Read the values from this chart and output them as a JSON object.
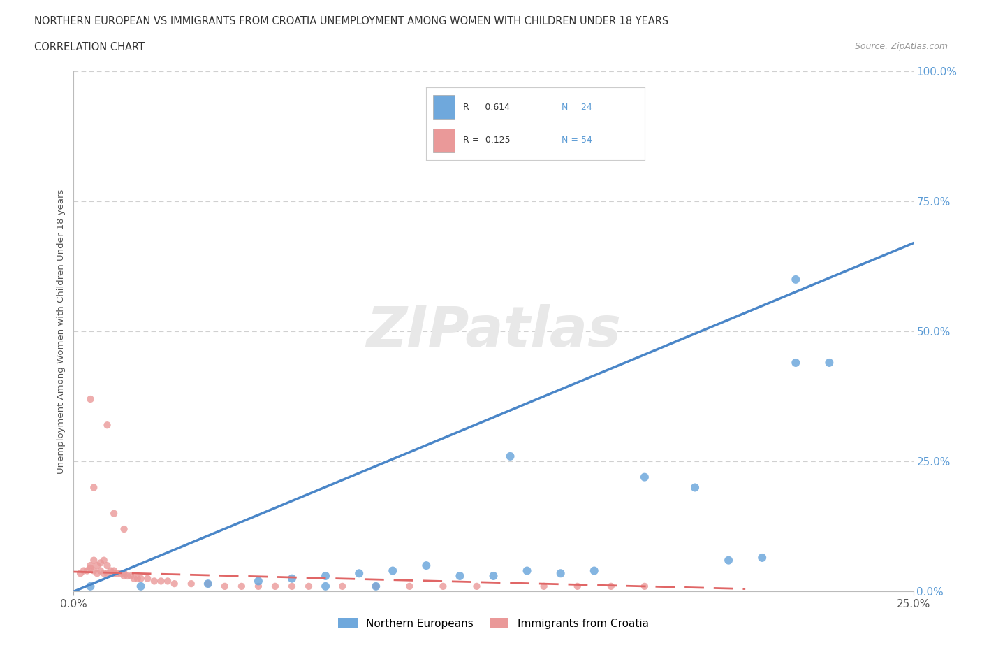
{
  "title_line1": "NORTHERN EUROPEAN VS IMMIGRANTS FROM CROATIA UNEMPLOYMENT AMONG WOMEN WITH CHILDREN UNDER 18 YEARS",
  "title_line2": "CORRELATION CHART",
  "source": "Source: ZipAtlas.com",
  "ylabel": "Unemployment Among Women with Children Under 18 years",
  "xlim": [
    0.0,
    0.25
  ],
  "ylim": [
    0.0,
    1.0
  ],
  "yticks": [
    0.0,
    0.25,
    0.5,
    0.75,
    1.0
  ],
  "ytick_labels": [
    "0.0%",
    "25.0%",
    "50.0%",
    "75.0%",
    "100.0%"
  ],
  "blue_color": "#6fa8dc",
  "pink_color": "#ea9999",
  "blue_line_color": "#4a86c8",
  "pink_line_color": "#e06666",
  "watermark": "ZIPatlas",
  "blue_scatter_x": [
    0.005,
    0.02,
    0.04,
    0.055,
    0.065,
    0.075,
    0.085,
    0.095,
    0.105,
    0.115,
    0.125,
    0.135,
    0.145,
    0.155,
    0.17,
    0.185,
    0.195,
    0.205,
    0.215,
    0.225,
    0.13,
    0.215,
    0.09,
    0.075
  ],
  "blue_scatter_y": [
    0.01,
    0.01,
    0.015,
    0.02,
    0.025,
    0.03,
    0.035,
    0.04,
    0.05,
    0.03,
    0.03,
    0.04,
    0.035,
    0.04,
    0.22,
    0.2,
    0.06,
    0.065,
    0.6,
    0.44,
    0.26,
    0.44,
    0.01,
    0.01
  ],
  "pink_scatter_x": [
    0.002,
    0.003,
    0.004,
    0.005,
    0.005,
    0.006,
    0.006,
    0.007,
    0.007,
    0.008,
    0.008,
    0.009,
    0.009,
    0.01,
    0.01,
    0.011,
    0.012,
    0.012,
    0.013,
    0.014,
    0.015,
    0.015,
    0.016,
    0.017,
    0.018,
    0.019,
    0.02,
    0.022,
    0.024,
    0.026,
    0.028,
    0.03,
    0.035,
    0.04,
    0.045,
    0.05,
    0.055,
    0.06,
    0.065,
    0.07,
    0.08,
    0.09,
    0.1,
    0.11,
    0.12,
    0.14,
    0.15,
    0.16,
    0.17,
    0.01,
    0.012,
    0.015,
    0.005,
    0.006
  ],
  "pink_scatter_y": [
    0.035,
    0.04,
    0.04,
    0.045,
    0.05,
    0.04,
    0.06,
    0.035,
    0.05,
    0.04,
    0.055,
    0.035,
    0.06,
    0.035,
    0.05,
    0.04,
    0.035,
    0.04,
    0.035,
    0.035,
    0.03,
    0.035,
    0.03,
    0.03,
    0.025,
    0.025,
    0.025,
    0.025,
    0.02,
    0.02,
    0.02,
    0.015,
    0.015,
    0.015,
    0.01,
    0.01,
    0.01,
    0.01,
    0.01,
    0.01,
    0.01,
    0.01,
    0.01,
    0.01,
    0.01,
    0.01,
    0.01,
    0.01,
    0.01,
    0.32,
    0.15,
    0.12,
    0.37,
    0.2
  ],
  "blue_line_x": [
    0.0,
    0.25
  ],
  "blue_line_y": [
    0.0,
    0.67
  ],
  "pink_line_x": [
    0.0,
    0.2
  ],
  "pink_line_y": [
    0.038,
    0.005
  ],
  "background_color": "#ffffff",
  "grid_color": "#d0d0d0"
}
